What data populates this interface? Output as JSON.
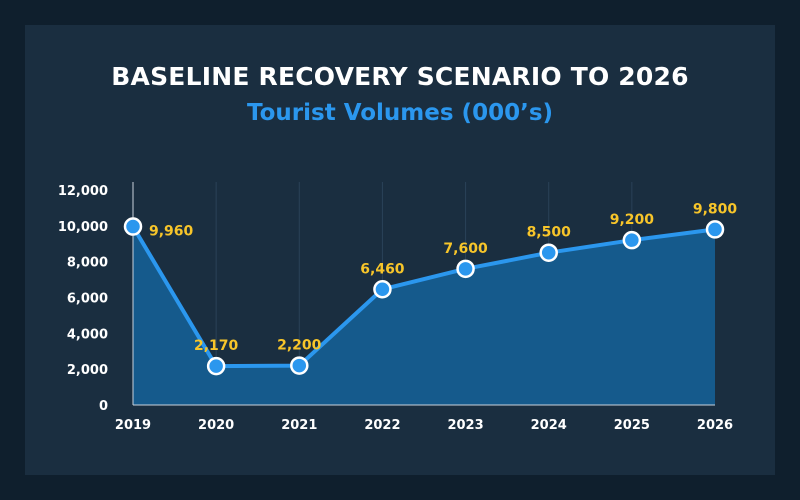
{
  "chart_data": {
    "type": "area",
    "title": "BASELINE RECOVERY SCENARIO TO 2026",
    "subtitle": "Tourist Volumes (000’s)",
    "categories": [
      "2019",
      "2020",
      "2021",
      "2022",
      "2023",
      "2024",
      "2025",
      "2026"
    ],
    "series": [
      {
        "values": [
          9960,
          2170,
          2200,
          6460,
          7600,
          8500,
          9200,
          9800
        ],
        "labels": [
          "9,960",
          "2,170",
          "2,200",
          "6,460",
          "7,600",
          "8,500",
          "9,200",
          "9,800"
        ]
      }
    ],
    "yticks": [
      "0",
      "2,000",
      "4,000",
      "6,000",
      "8,000",
      "10,000",
      "12,000"
    ],
    "ylim": [
      0,
      12000
    ],
    "grid": "vertical",
    "colors": {
      "line": "#2b97ee",
      "area": "#155a8c",
      "marker": "#2b97ee",
      "marker_stroke": "#ffffff",
      "data_label": "#f7c52a"
    }
  }
}
